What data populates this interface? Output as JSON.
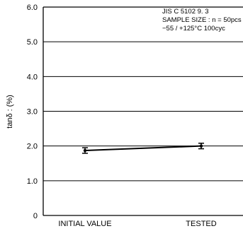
{
  "chart_data": {
    "type": "line",
    "ylabel": "tanδ : (%)",
    "xlabel": "",
    "ylim": [
      0,
      6
    ],
    "yticks": [
      "6.0",
      "5.0",
      "4.0",
      "3.0",
      "2.0",
      "1.0",
      "0"
    ],
    "ytick_values": [
      6,
      5,
      4,
      3,
      2,
      1,
      0
    ],
    "categories": [
      "INITIAL VALUE",
      "TESTED"
    ],
    "grid": "horizontal",
    "series": [
      {
        "values": [
          1.87,
          2.0
        ],
        "error_low": [
          1.79,
          1.92
        ],
        "error_high": [
          1.95,
          2.08
        ]
      }
    ],
    "annotation_lines": [
      "JIS C 5102 9. 3",
      "SAMPLE SIZE : n = 50pcs",
      "−55 / +125°C 100cyc"
    ]
  }
}
